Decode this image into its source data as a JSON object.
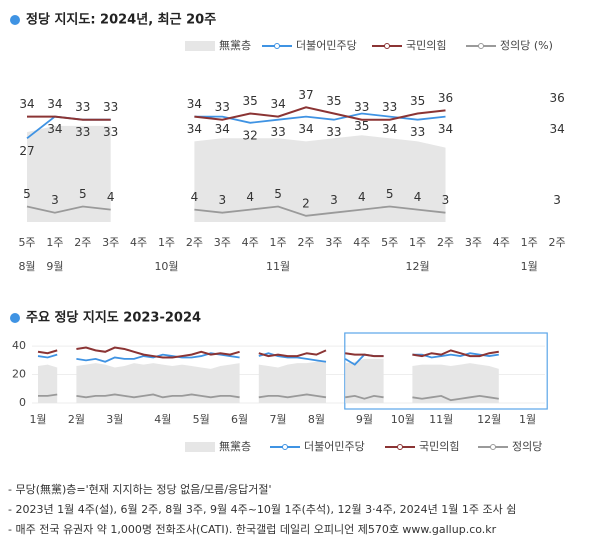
{
  "chart_data": [
    {
      "type": "line",
      "title": "정당 지지도: 2024년, 최근 20주",
      "categories": [
        "5주",
        "1주",
        "2주",
        "3주",
        "4주",
        "1주",
        "2주",
        "3주",
        "4주",
        "1주",
        "2주",
        "3주",
        "4주",
        "5주",
        "1주",
        "2주",
        "3주",
        "4주",
        "1주",
        "2주"
      ],
      "months": [
        "8월",
        "9월",
        null,
        null,
        null,
        "10월",
        null,
        null,
        null,
        "11월",
        null,
        null,
        null,
        null,
        "12월",
        null,
        null,
        null,
        "1월",
        null
      ],
      "ylim": [
        0,
        40
      ],
      "legend": "top-right",
      "data_labels": true,
      "series": [
        {
          "name": "無黨층",
          "type": "area",
          "color": "#e6e6e6",
          "values": [
            29,
            31,
            31,
            31,
            null,
            null,
            26,
            27,
            27,
            27,
            26,
            27,
            28,
            27,
            26,
            24,
            null,
            null,
            null,
            25
          ]
        },
        {
          "name": "더불어민주당",
          "color": "#3f93e3",
          "values": [
            27,
            34,
            33,
            33,
            null,
            null,
            34,
            34,
            32,
            33,
            34,
            33,
            35,
            34,
            33,
            34,
            null,
            null,
            null,
            34
          ]
        },
        {
          "name": "국민의힘",
          "color": "#8b3434",
          "values": [
            34,
            34,
            33,
            33,
            null,
            null,
            34,
            33,
            35,
            34,
            37,
            35,
            33,
            33,
            35,
            36,
            null,
            null,
            null,
            36
          ]
        },
        {
          "name": "정의당 (%)",
          "color": "#9a9a9a",
          "values": [
            5,
            3,
            5,
            4,
            null,
            null,
            4,
            3,
            4,
            5,
            2,
            3,
            4,
            5,
            4,
            3,
            null,
            null,
            null,
            3
          ]
        }
      ]
    },
    {
      "type": "line",
      "title": "주요 정당 지지도 2023-2024",
      "categories": [
        "1월",
        null,
        null,
        null,
        "2월",
        null,
        null,
        null,
        "3월",
        null,
        null,
        null,
        null,
        "4월",
        null,
        null,
        null,
        "5월",
        null,
        null,
        null,
        "6월",
        null,
        null,
        null,
        "7월",
        null,
        null,
        null,
        "8월",
        null,
        null,
        null,
        null,
        "9월",
        null,
        null,
        null,
        "10월",
        null,
        null,
        null,
        "11월",
        null,
        null,
        null,
        null,
        "12월",
        null,
        null,
        null,
        "1월",
        null
      ],
      "ylim": [
        0,
        45
      ],
      "yticks": [
        0,
        20,
        40
      ],
      "grid": true,
      "legend": "bottom-right",
      "series": [
        {
          "name": "無黨층",
          "type": "area",
          "color": "#e6e6e6",
          "values": [
            26,
            27,
            25,
            null,
            26,
            27,
            28,
            27,
            25,
            26,
            28,
            27,
            28,
            27,
            26,
            27,
            26,
            25,
            24,
            26,
            27,
            28,
            null,
            27,
            26,
            25,
            27,
            28,
            28,
            29,
            30,
            null,
            28,
            29,
            31,
            31,
            31,
            null,
            null,
            26,
            27,
            27,
            27,
            26,
            27,
            28,
            27,
            26,
            24,
            null,
            null,
            null,
            25
          ]
        },
        {
          "name": "더불어민주당",
          "color": "#3f93e3",
          "values": [
            33,
            32,
            34,
            null,
            31,
            30,
            31,
            29,
            32,
            31,
            31,
            33,
            32,
            34,
            33,
            32,
            32,
            33,
            35,
            34,
            33,
            32,
            null,
            33,
            35,
            33,
            32,
            32,
            31,
            30,
            29,
            null,
            31,
            27,
            34,
            33,
            33,
            null,
            null,
            34,
            34,
            32,
            33,
            34,
            33,
            35,
            34,
            33,
            34,
            null,
            null,
            null,
            34
          ]
        },
        {
          "name": "국민의힘",
          "color": "#8b3434",
          "values": [
            36,
            35,
            37,
            null,
            38,
            39,
            37,
            36,
            39,
            38,
            36,
            34,
            33,
            32,
            32,
            33,
            34,
            36,
            34,
            35,
            34,
            36,
            null,
            35,
            33,
            34,
            33,
            33,
            35,
            34,
            37,
            null,
            35,
            34,
            34,
            33,
            33,
            null,
            null,
            34,
            33,
            35,
            34,
            37,
            35,
            33,
            33,
            35,
            36,
            null,
            null,
            null,
            36
          ]
        },
        {
          "name": "정의당",
          "color": "#9a9a9a",
          "values": [
            5,
            5,
            6,
            null,
            5,
            4,
            5,
            5,
            6,
            5,
            4,
            5,
            6,
            4,
            5,
            5,
            6,
            5,
            4,
            5,
            5,
            4,
            null,
            4,
            5,
            5,
            4,
            5,
            6,
            5,
            4,
            null,
            4,
            5,
            3,
            5,
            4,
            null,
            null,
            4,
            3,
            4,
            5,
            2,
            3,
            4,
            5,
            4,
            3,
            null,
            null,
            null,
            3
          ]
        }
      ]
    }
  ],
  "notes": [
    "- 무당(無黨)층='현재 지지하는 정당 없음/모름/응답거절'",
    "- 2023년 1월 4주(설), 6월 2주, 8월 3주, 9월 4주~10월 1주(추석), 12월 3·4주, 2024년 1월 1주 조사 쉼",
    "- 매주 전국 유권자 약 1,000명 전화조사(CATI). 한국갤럽 데일리 오피니언 제570호 www.gallup.co.kr"
  ]
}
